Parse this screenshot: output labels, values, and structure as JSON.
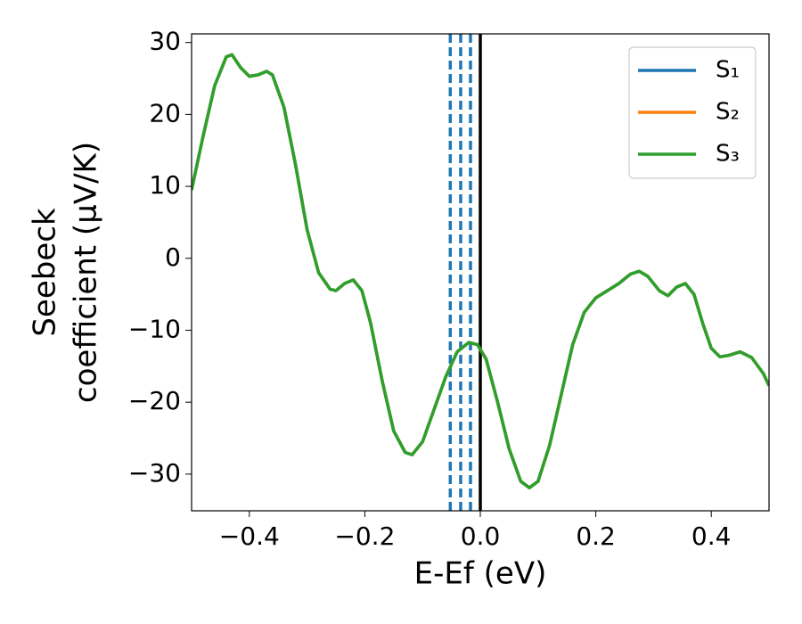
{
  "chart_data": {
    "type": "line",
    "xlabel": "E-Ef (eV)",
    "ylabel": [
      "Seebeck",
      "coefficient  (μV/K)"
    ],
    "x": [
      -0.5,
      -0.48,
      -0.46,
      -0.44,
      -0.43,
      -0.415,
      -0.4,
      -0.385,
      -0.37,
      -0.36,
      -0.34,
      -0.32,
      -0.3,
      -0.28,
      -0.26,
      -0.25,
      -0.235,
      -0.22,
      -0.205,
      -0.19,
      -0.17,
      -0.15,
      -0.13,
      -0.118,
      -0.1,
      -0.08,
      -0.06,
      -0.04,
      -0.02,
      -0.005,
      0.01,
      0.03,
      0.05,
      0.07,
      0.085,
      0.1,
      0.12,
      0.14,
      0.16,
      0.18,
      0.2,
      0.22,
      0.24,
      0.26,
      0.275,
      0.29,
      0.31,
      0.325,
      0.34,
      0.355,
      0.37,
      0.385,
      0.4,
      0.415,
      0.43,
      0.45,
      0.47,
      0.49,
      0.5
    ],
    "series": [
      {
        "name": "S₁",
        "color": "#1f77b4",
        "values": [
          9.5,
          17,
          24,
          28,
          28.3,
          26.5,
          25.3,
          25.5,
          26,
          25.5,
          21,
          13,
          4,
          -2,
          -4.3,
          -4.5,
          -3.5,
          -3,
          -4.5,
          -9,
          -17,
          -24,
          -27,
          -27.3,
          -25.5,
          -21,
          -16.5,
          -13,
          -11.7,
          -12,
          -14,
          -20,
          -26.5,
          -31,
          -31.9,
          -31,
          -26,
          -19,
          -12,
          -7.5,
          -5.5,
          -4.5,
          -3.5,
          -2.2,
          -1.8,
          -2.5,
          -4.5,
          -5.2,
          -4,
          -3.5,
          -5,
          -9,
          -12.5,
          -13.7,
          -13.5,
          -13,
          -13.8,
          -16,
          -17.7
        ]
      },
      {
        "name": "S₂",
        "color": "#ff7f0e",
        "values": [
          9.5,
          17,
          24,
          28,
          28.3,
          26.5,
          25.3,
          25.5,
          26,
          25.5,
          21,
          13,
          4,
          -2,
          -4.3,
          -4.5,
          -3.5,
          -3,
          -4.5,
          -9,
          -17,
          -24,
          -27,
          -27.3,
          -25.5,
          -21,
          -16.5,
          -13,
          -11.7,
          -12,
          -14,
          -20,
          -26.5,
          -31,
          -31.9,
          -31,
          -26,
          -19,
          -12,
          -7.5,
          -5.5,
          -4.5,
          -3.5,
          -2.2,
          -1.8,
          -2.5,
          -4.5,
          -5.2,
          -4,
          -3.5,
          -5,
          -9,
          -12.5,
          -13.7,
          -13.5,
          -13,
          -13.8,
          -16,
          -17.7
        ]
      },
      {
        "name": "S₃",
        "color": "#2ca02c",
        "values": [
          9.5,
          17,
          24,
          28,
          28.3,
          26.5,
          25.3,
          25.5,
          26,
          25.5,
          21,
          13,
          4,
          -2,
          -4.3,
          -4.5,
          -3.5,
          -3,
          -4.5,
          -9,
          -17,
          -24,
          -27,
          -27.3,
          -25.5,
          -21,
          -16.5,
          -13,
          -11.7,
          -12,
          -14,
          -20,
          -26.5,
          -31,
          -31.9,
          -31,
          -26,
          -19,
          -12,
          -7.5,
          -5.5,
          -4.5,
          -3.5,
          -2.2,
          -1.8,
          -2.5,
          -4.5,
          -5.2,
          -4,
          -3.5,
          -5,
          -9,
          -12.5,
          -13.7,
          -13.5,
          -13,
          -13.8,
          -16,
          -17.7
        ]
      }
    ],
    "vlines": [
      {
        "x": -0.052,
        "color": "#1f77b4",
        "dashed": true
      },
      {
        "x": -0.034,
        "color": "#1f77b4",
        "dashed": true
      },
      {
        "x": -0.017,
        "color": "#1f77b4",
        "dashed": true
      },
      {
        "x": 0,
        "color": "#000000",
        "dashed": false
      }
    ],
    "xlim": [
      -0.5,
      0.5
    ],
    "ylim": [
      -35.1,
      31.2
    ],
    "xticks": [
      {
        "value": -0.4,
        "label": "−0.4"
      },
      {
        "value": -0.2,
        "label": "−0.2"
      },
      {
        "value": 0,
        "label": "0.0"
      },
      {
        "value": 0.2,
        "label": "0.2"
      },
      {
        "value": 0.4,
        "label": "0.4"
      }
    ],
    "yticks": [
      {
        "value": -30,
        "label": "−30"
      },
      {
        "value": -20,
        "label": "−20"
      },
      {
        "value": -10,
        "label": "−10"
      },
      0,
      10,
      20,
      30
    ],
    "legend": "upper right",
    "grid": false
  }
}
